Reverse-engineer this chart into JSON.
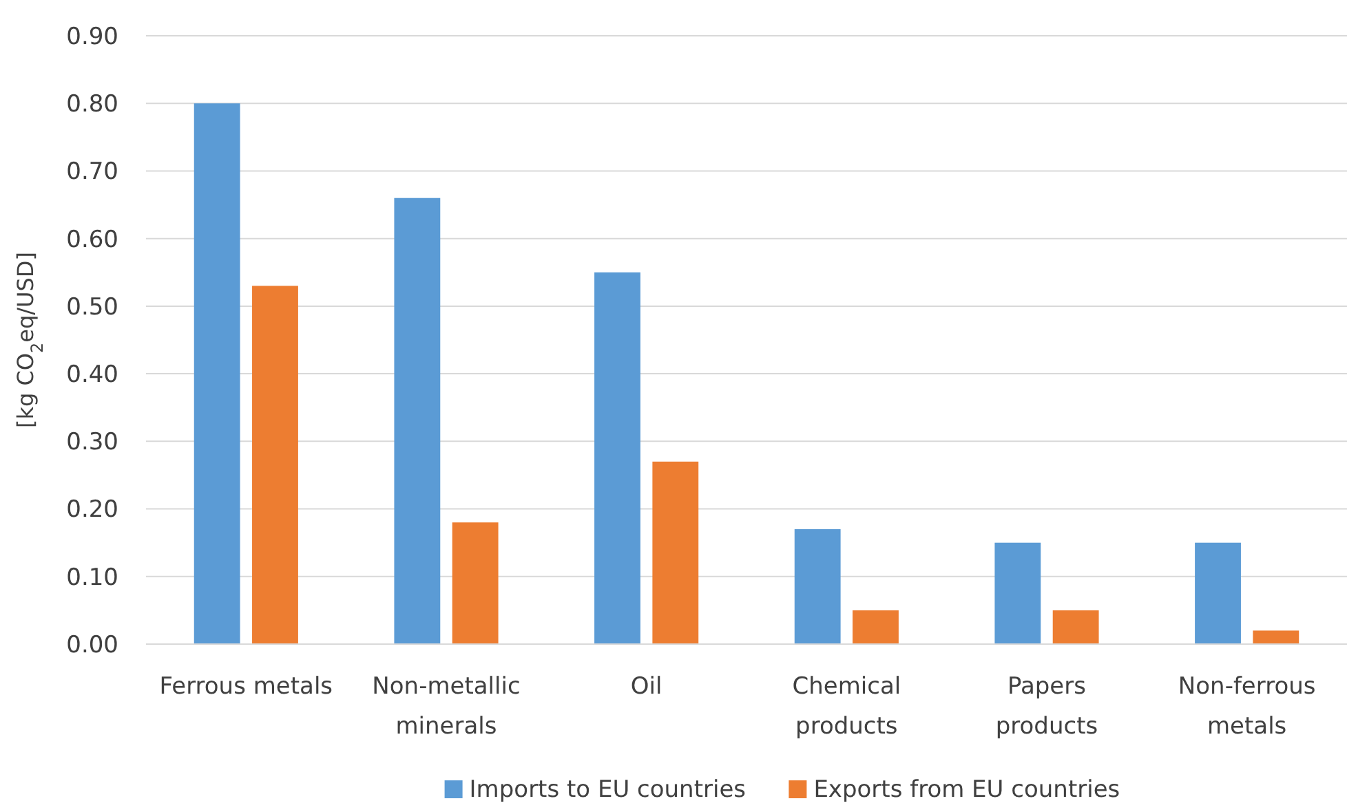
{
  "chart_data": {
    "type": "bar",
    "ylabel": "[kg CO$_{2}$eq/USD]",
    "categories": [
      "Ferrous metals",
      "Non-metallic minerals",
      "Oil",
      "Chemical products",
      "Papers products",
      "Non-ferrous metals"
    ],
    "series": [
      {
        "name": "Imports to EU countries",
        "color": "#5b9bd5",
        "values": [
          0.8,
          0.66,
          0.55,
          0.17,
          0.15,
          0.15
        ]
      },
      {
        "name": "Exports from EU countries",
        "color": "#ed7d31",
        "values": [
          0.53,
          0.18,
          0.27,
          0.05,
          0.05,
          0.02
        ]
      }
    ],
    "ylim": [
      0,
      0.9
    ],
    "yticks": [
      {
        "value": 0,
        "label": "0.00"
      },
      {
        "value": 0.1,
        "label": "0.10"
      },
      {
        "value": 0.2,
        "label": "0.20"
      },
      {
        "value": 0.3,
        "label": "0.30"
      },
      {
        "value": 0.4,
        "label": "0.40"
      },
      {
        "value": 0.5,
        "label": "0.50"
      },
      {
        "value": 0.6,
        "label": "0.60"
      },
      {
        "value": 0.7,
        "label": "0.70"
      },
      {
        "value": 0.8,
        "label": "0.80"
      },
      {
        "value": 0.9,
        "label": "0.90"
      }
    ],
    "grid": "y",
    "legend": "bottom"
  }
}
